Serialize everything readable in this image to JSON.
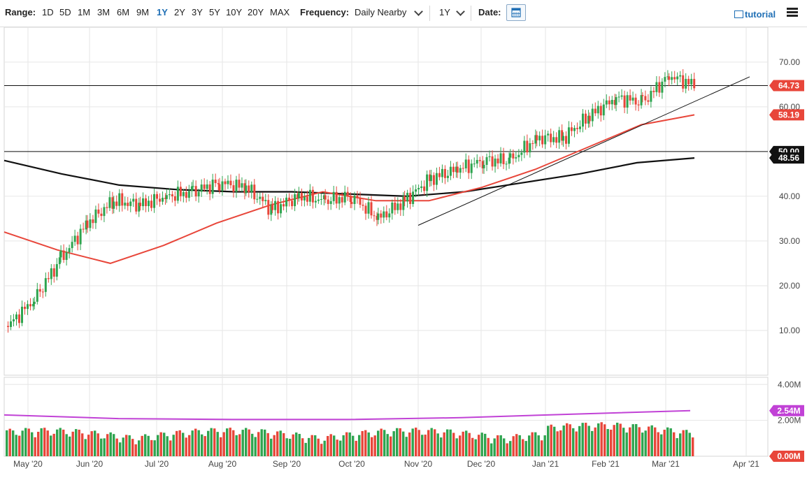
{
  "toolbar": {
    "range_label": "Range:",
    "ranges": [
      "1D",
      "5D",
      "1M",
      "3M",
      "6M",
      "9M",
      "1Y",
      "2Y",
      "3Y",
      "5Y",
      "10Y",
      "20Y",
      "MAX"
    ],
    "active_range": "1Y",
    "frequency_label": "Frequency:",
    "frequency_value": "Daily Nearby",
    "period_value": "1Y",
    "date_label": "Date:",
    "tutorial_label": "tutorial"
  },
  "colors": {
    "up": "#2ea44f",
    "down": "#e8463a",
    "ma_short": "#e8463a",
    "ma_long": "#111111",
    "volume_avg": "#c142d6",
    "price_tag": "#e8463a",
    "black_tag": "#111111",
    "volume_tag": "#c142d6"
  },
  "chart_data": {
    "type": "candlestick",
    "x_labels": [
      "May '20",
      "Jun '20",
      "Jul '20",
      "Aug '20",
      "Sep '20",
      "Oct '20",
      "Nov '20",
      "Dec '20",
      "Jan '21",
      "Feb '21",
      "Mar '21",
      "Apr '21"
    ],
    "y_ticks": [
      "10.00",
      "20.00",
      "30.00",
      "40.00",
      "50.00",
      "60.00",
      "70.00"
    ],
    "ylim": [
      0,
      77
    ],
    "volume_ticks": [
      "2.00M",
      "4.00M"
    ],
    "volume_ylim": [
      0,
      4.4
    ],
    "horizontal_lines": [
      64.73,
      50.0
    ],
    "price_tags": [
      {
        "label": "64.73",
        "value": 64.73,
        "style": "red"
      },
      {
        "label": "58.19",
        "value": 58.19,
        "style": "red"
      },
      {
        "label": "50.00",
        "value": 50.0,
        "style": "black"
      },
      {
        "label": "48.56",
        "value": 48.56,
        "style": "black"
      }
    ],
    "volume_tags": [
      {
        "label": "2.54M",
        "value": 2.54,
        "style": "purple"
      },
      {
        "label": "0.00M",
        "value": 0.0,
        "style": "red"
      }
    ],
    "trendline": {
      "from": [
        "Nov '20",
        33.5
      ],
      "to": [
        "Apr '21",
        66.7
      ]
    },
    "close_path": [
      [
        "Apr '20",
        11
      ],
      [
        "May '20",
        17
      ],
      [
        "May '20",
        26
      ],
      [
        "Jun '20",
        34
      ],
      [
        "Jun '20",
        39
      ],
      [
        "Jul '20",
        38
      ],
      [
        "Jul '20",
        40
      ],
      [
        "Aug '20",
        41
      ],
      [
        "Aug '20",
        43
      ],
      [
        "Sep '20",
        42
      ],
      [
        "Sep '20",
        37
      ],
      [
        "Sep '20",
        40
      ],
      [
        "Oct '20",
        39
      ],
      [
        "Oct '20",
        40
      ],
      [
        "Nov '20",
        35
      ],
      [
        "Nov '20",
        39
      ],
      [
        "Nov '20",
        44
      ],
      [
        "Dec '20",
        46
      ],
      [
        "Dec '20",
        48
      ],
      [
        "Jan '21",
        48
      ],
      [
        "Jan '21",
        53
      ],
      [
        "Feb '21",
        53
      ],
      [
        "Feb '21",
        58
      ],
      [
        "Feb '21",
        62
      ],
      [
        "Mar '21",
        61
      ],
      [
        "Mar '21",
        67
      ],
      [
        "Mar '21",
        64.73
      ]
    ],
    "moving_average_short": [
      [
        "Apr '20",
        32
      ],
      [
        "May '20",
        28
      ],
      [
        "May '20",
        25
      ],
      [
        "Jun '20",
        29
      ],
      [
        "Jul '20",
        34
      ],
      [
        "Aug '20",
        38
      ],
      [
        "Sep '20",
        41
      ],
      [
        "Oct '20",
        39
      ],
      [
        "Nov '20",
        39
      ],
      [
        "Dec '20",
        42
      ],
      [
        "Jan '21",
        46
      ],
      [
        "Feb '21",
        51
      ],
      [
        "Mar '21",
        56
      ],
      [
        "Mar '21",
        58.19
      ]
    ],
    "moving_average_long": [
      [
        "Apr '20",
        48
      ],
      [
        "May '20",
        45
      ],
      [
        "Jun '20",
        42.5
      ],
      [
        "Jul '20",
        41.5
      ],
      [
        "Aug '20",
        41
      ],
      [
        "Sep '20",
        41
      ],
      [
        "Oct '20",
        40.5
      ],
      [
        "Nov '20",
        40
      ],
      [
        "Dec '20",
        41
      ],
      [
        "Jan '21",
        43
      ],
      [
        "Feb '21",
        45
      ],
      [
        "Mar '21",
        47.5
      ],
      [
        "Mar '21",
        48.56
      ]
    ],
    "volume_average": [
      [
        "Apr '20",
        2.3
      ],
      [
        "Jun '20",
        2.1
      ],
      [
        "Aug '20",
        2.05
      ],
      [
        "Oct '20",
        2.05
      ],
      [
        "Dec '20",
        2.15
      ],
      [
        "Feb '21",
        2.35
      ],
      [
        "Mar '21",
        2.54
      ]
    ]
  }
}
